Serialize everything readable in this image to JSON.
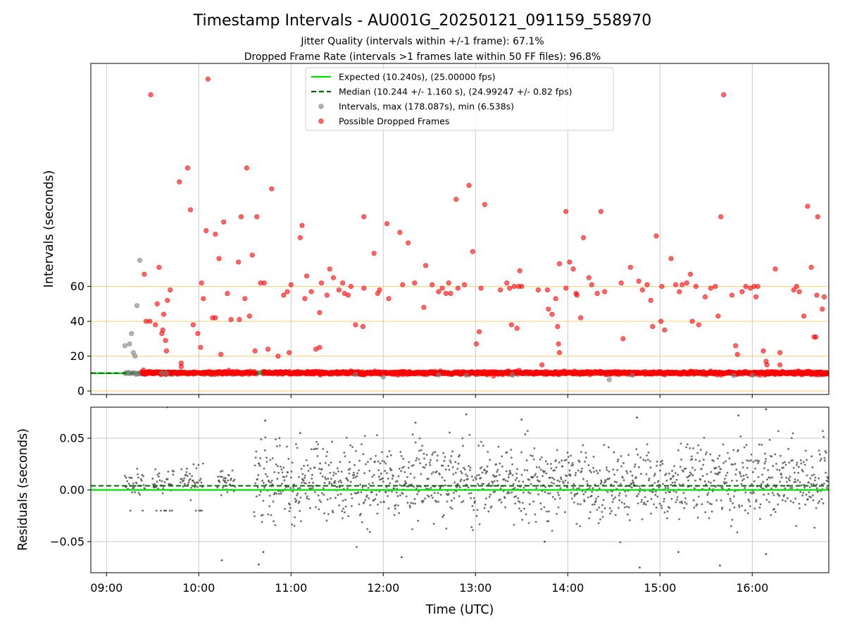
{
  "chart_data": [
    {
      "type": "scatter",
      "title": "Timestamp Intervals - AU001G_20250121_091159_558970",
      "subtitle_lines": [
        "Jitter Quality (intervals within +/-1 frame): 67.1%",
        "Dropped Frame Rate (intervals >1 frames late within 50 FF files): 96.8%"
      ],
      "xlabel": "Time (UTC)",
      "ylabel": "Intervals (seconds)",
      "xlim_hours": [
        8.83,
        16.83
      ],
      "ylim": [
        -2,
        188
      ],
      "x_tick_values": [
        9,
        10,
        11,
        12,
        13,
        14,
        15,
        16
      ],
      "x_tick_labels": [
        "09:00",
        "10:00",
        "11:00",
        "12:00",
        "13:00",
        "14:00",
        "15:00",
        "16:00"
      ],
      "y_ticks": [
        0,
        20,
        40,
        60
      ],
      "grid": true,
      "horizontal_reference_lines": [
        0,
        20,
        40,
        60
      ],
      "legend_position": "upper-center",
      "expected_interval": 10.24,
      "median_interval": 10.244,
      "legend": [
        "Expected (10.240s), (25.00000 fps)",
        "Median (10.244 +/- 1.160 s), (24.99247 +/- 0.82 fps)",
        "Intervals, max (178.087s), min (6.538s)",
        "Possible Dropped Frames"
      ],
      "series": [
        {
          "name": "Intervals, max (178.087s), min (6.538s)",
          "points": [
            [
              9.2,
              26
            ],
            [
              9.25,
              27
            ],
            [
              9.27,
              33
            ],
            [
              9.29,
              22
            ],
            [
              9.31,
              20
            ],
            [
              9.33,
              49
            ],
            [
              9.36,
              75
            ],
            [
              9.24,
              10.2
            ],
            [
              9.3,
              10.3
            ],
            [
              9.34,
              10.1
            ],
            [
              9.6,
              10.3
            ],
            [
              9.65,
              10.1
            ],
            [
              11.7,
              9.5
            ],
            [
              12.0,
              8.0
            ],
            [
              12.6,
              9.2
            ],
            [
              12.9,
              9.0
            ],
            [
              13.4,
              9.5
            ],
            [
              14.45,
              6.5
            ],
            [
              14.7,
              9.0
            ],
            [
              15.8,
              8.9
            ],
            [
              16.0,
              9.1
            ]
          ]
        },
        {
          "name": "Possible Dropped Frames",
          "points": [
            [
              9.4,
              12
            ],
            [
              9.41,
              67
            ],
            [
              9.43,
              40
            ],
            [
              9.47,
              40
            ],
            [
              9.48,
              170
            ],
            [
              9.53,
              38
            ],
            [
              9.55,
              50
            ],
            [
              9.57,
              71
            ],
            [
              9.6,
              33
            ],
            [
              9.61,
              35
            ],
            [
              9.62,
              44
            ],
            [
              9.64,
              29
            ],
            [
              9.65,
              23
            ],
            [
              9.66,
              52
            ],
            [
              9.69,
              58
            ],
            [
              9.79,
              120
            ],
            [
              9.81,
              16
            ],
            [
              9.81,
              14
            ],
            [
              9.88,
              128
            ],
            [
              9.91,
              104
            ],
            [
              9.94,
              38
            ],
            [
              9.99,
              33
            ],
            [
              10.02,
              25
            ],
            [
              10.03,
              62
            ],
            [
              10.05,
              53
            ],
            [
              10.08,
              92
            ],
            [
              10.1,
              179
            ],
            [
              10.15,
              42
            ],
            [
              10.18,
              42
            ],
            [
              10.18,
              90
            ],
            [
              10.22,
              76
            ],
            [
              10.24,
              21
            ],
            [
              10.27,
              97
            ],
            [
              10.31,
              56
            ],
            [
              10.35,
              41
            ],
            [
              10.43,
              74
            ],
            [
              10.44,
              41
            ],
            [
              10.46,
              100
            ],
            [
              10.5,
              53
            ],
            [
              10.52,
              128
            ],
            [
              10.55,
              43
            ],
            [
              10.58,
              78
            ],
            [
              10.61,
              23
            ],
            [
              10.63,
              100
            ],
            [
              10.67,
              62
            ],
            [
              10.71,
              62
            ],
            [
              10.75,
              24
            ],
            [
              10.79,
              116
            ],
            [
              10.86,
              20
            ],
            [
              10.92,
              55
            ],
            [
              10.96,
              57
            ],
            [
              10.98,
              22
            ],
            [
              11.0,
              61
            ],
            [
              11.1,
              88
            ],
            [
              11.12,
              95
            ],
            [
              11.15,
              53
            ],
            [
              11.17,
              66
            ],
            [
              11.22,
              57
            ],
            [
              11.27,
              24
            ],
            [
              11.31,
              25
            ],
            [
              11.31,
              45
            ],
            [
              11.33,
              62
            ],
            [
              11.39,
              55
            ],
            [
              11.42,
              70
            ],
            [
              11.46,
              65
            ],
            [
              11.52,
              58
            ],
            [
              11.56,
              62
            ],
            [
              11.58,
              56
            ],
            [
              11.62,
              55
            ],
            [
              11.65,
              60
            ],
            [
              11.7,
              38
            ],
            [
              11.78,
              37
            ],
            [
              11.79,
              59
            ],
            [
              11.79,
              100
            ],
            [
              11.9,
              79
            ],
            [
              11.94,
              56
            ],
            [
              11.96,
              58
            ],
            [
              12.04,
              96
            ],
            [
              12.06,
              53
            ],
            [
              12.18,
              91
            ],
            [
              12.21,
              61
            ],
            [
              12.27,
              85
            ],
            [
              12.34,
              62
            ],
            [
              12.44,
              48
            ],
            [
              12.46,
              72
            ],
            [
              12.53,
              61
            ],
            [
              12.6,
              57
            ],
            [
              12.64,
              59
            ],
            [
              12.68,
              56
            ],
            [
              12.71,
              62
            ],
            [
              12.73,
              56
            ],
            [
              12.79,
              110
            ],
            [
              12.81,
              59
            ],
            [
              12.88,
              61
            ],
            [
              12.93,
              118
            ],
            [
              12.97,
              80
            ],
            [
              13.01,
              27
            ],
            [
              13.04,
              34
            ],
            [
              13.06,
              59
            ],
            [
              13.1,
              107
            ],
            [
              13.27,
              58
            ],
            [
              13.34,
              62
            ],
            [
              13.37,
              59
            ],
            [
              13.39,
              38
            ],
            [
              13.42,
              60
            ],
            [
              13.45,
              36
            ],
            [
              13.47,
              60
            ],
            [
              13.48,
              69
            ],
            [
              13.5,
              60
            ],
            [
              13.68,
              58
            ],
            [
              13.72,
              15
            ],
            [
              13.78,
              58
            ],
            [
              13.79,
              47
            ],
            [
              13.83,
              44
            ],
            [
              13.87,
              53
            ],
            [
              13.89,
              37
            ],
            [
              13.9,
              27
            ],
            [
              13.91,
              22
            ],
            [
              13.91,
              73
            ],
            [
              13.98,
              59
            ],
            [
              13.98,
              103
            ],
            [
              14.02,
              74
            ],
            [
              14.06,
              70
            ],
            [
              14.09,
              56
            ],
            [
              14.1,
              55
            ],
            [
              14.14,
              42
            ],
            [
              14.17,
              88
            ],
            [
              14.23,
              65
            ],
            [
              14.26,
              61
            ],
            [
              14.32,
              56
            ],
            [
              14.36,
              103
            ],
            [
              14.4,
              57
            ],
            [
              14.58,
              62
            ],
            [
              14.6,
              30
            ],
            [
              14.68,
              71
            ],
            [
              14.77,
              63
            ],
            [
              14.81,
              58
            ],
            [
              14.86,
              61
            ],
            [
              14.92,
              37
            ],
            [
              14.9,
              52
            ],
            [
              14.96,
              89
            ],
            [
              15.01,
              40
            ],
            [
              15.02,
              60
            ],
            [
              15.05,
              35
            ],
            [
              15.12,
              76
            ],
            [
              15.17,
              61
            ],
            [
              15.21,
              57
            ],
            [
              15.24,
              61
            ],
            [
              15.29,
              62
            ],
            [
              15.33,
              67
            ],
            [
              15.35,
              40
            ],
            [
              15.39,
              60
            ],
            [
              15.42,
              38
            ],
            [
              15.49,
              54
            ],
            [
              15.55,
              59
            ],
            [
              15.6,
              60
            ],
            [
              15.63,
              43
            ],
            [
              15.66,
              100
            ],
            [
              15.69,
              170
            ],
            [
              15.78,
              55
            ],
            [
              15.82,
              26
            ],
            [
              15.84,
              21
            ],
            [
              15.89,
              57
            ],
            [
              15.93,
              60
            ],
            [
              15.98,
              59
            ],
            [
              16.02,
              60
            ],
            [
              16.04,
              54
            ],
            [
              16.06,
              60
            ],
            [
              16.12,
              23
            ],
            [
              16.15,
              17
            ],
            [
              16.16,
              15
            ],
            [
              16.25,
              70
            ],
            [
              16.3,
              22
            ],
            [
              16.3,
              15
            ],
            [
              16.45,
              58
            ],
            [
              16.48,
              60
            ],
            [
              16.51,
              57
            ],
            [
              16.56,
              43
            ],
            [
              16.6,
              106
            ],
            [
              16.64,
              71
            ],
            [
              16.67,
              31
            ],
            [
              16.69,
              31
            ],
            [
              16.7,
              55
            ],
            [
              16.71,
              100
            ],
            [
              16.76,
              47
            ],
            [
              16.78,
              54
            ]
          ]
        }
      ]
    },
    {
      "type": "scatter",
      "xlabel": "Time (UTC)",
      "ylabel": "Residuals (seconds)",
      "xlim_hours": [
        8.83,
        16.83
      ],
      "ylim": [
        -0.08,
        0.08
      ],
      "x_tick_values": [
        9,
        10,
        11,
        12,
        13,
        14,
        15,
        16
      ],
      "x_tick_labels": [
        "09:00",
        "10:00",
        "11:00",
        "12:00",
        "13:00",
        "14:00",
        "15:00",
        "16:00"
      ],
      "y_tick_values": [
        -0.05,
        0.0,
        0.05
      ],
      "y_tick_labels": [
        "−0.05",
        "0.00",
        "0.05"
      ],
      "grid": true,
      "expected_residual": 0.0,
      "median_residual": 0.004,
      "residual_spread": [
        {
          "from_hour": 9.2,
          "to_hour": 10.4,
          "center": 0.008,
          "spread": 0.01
        },
        {
          "from_hour": 10.6,
          "to_hour": 16.83,
          "center": 0.008,
          "spread": 0.03
        }
      ],
      "outliers": [
        [
          9.66,
          0.08
        ],
        [
          10.25,
          -0.068
        ],
        [
          10.65,
          -0.072
        ],
        [
          10.72,
          0.067
        ],
        [
          10.7,
          -0.06
        ],
        [
          11.1,
          0.055
        ],
        [
          12.2,
          -0.065
        ],
        [
          12.35,
          0.065
        ],
        [
          12.9,
          0.073
        ],
        [
          13.5,
          0.068
        ],
        [
          13.75,
          -0.05
        ],
        [
          14.75,
          0.07
        ],
        [
          14.78,
          -0.075
        ],
        [
          15.2,
          -0.06
        ],
        [
          15.65,
          -0.073
        ],
        [
          15.85,
          0.072
        ],
        [
          16.15,
          0.078
        ],
        [
          16.15,
          -0.062
        ]
      ]
    }
  ]
}
